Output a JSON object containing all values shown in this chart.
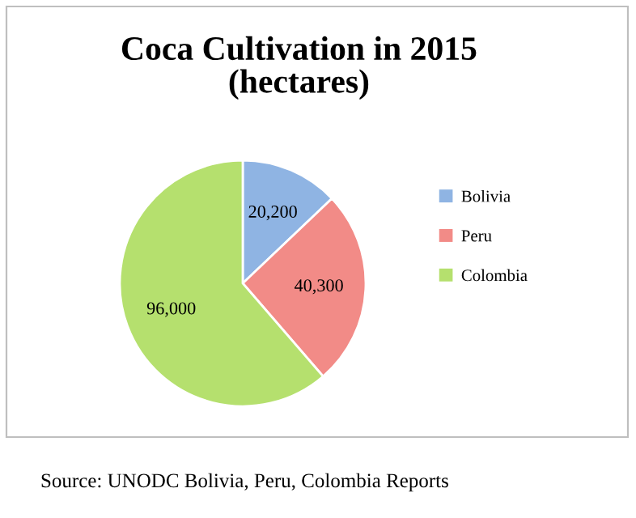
{
  "chart_data": {
    "type": "pie",
    "title": "Coca Cultivation in 2015\n(hectares)",
    "categories": [
      "Bolivia",
      "Peru",
      "Colombia"
    ],
    "values": [
      20200,
      40300,
      96000
    ],
    "colors": [
      "#8fb4e3",
      "#f28b87",
      "#b5e06e"
    ],
    "value_labels": [
      "20,200",
      "40,300",
      "96,000"
    ],
    "legend": "right",
    "annotations": [
      "Source: UNODC Bolivia, Peru, Colombia Reports"
    ]
  }
}
